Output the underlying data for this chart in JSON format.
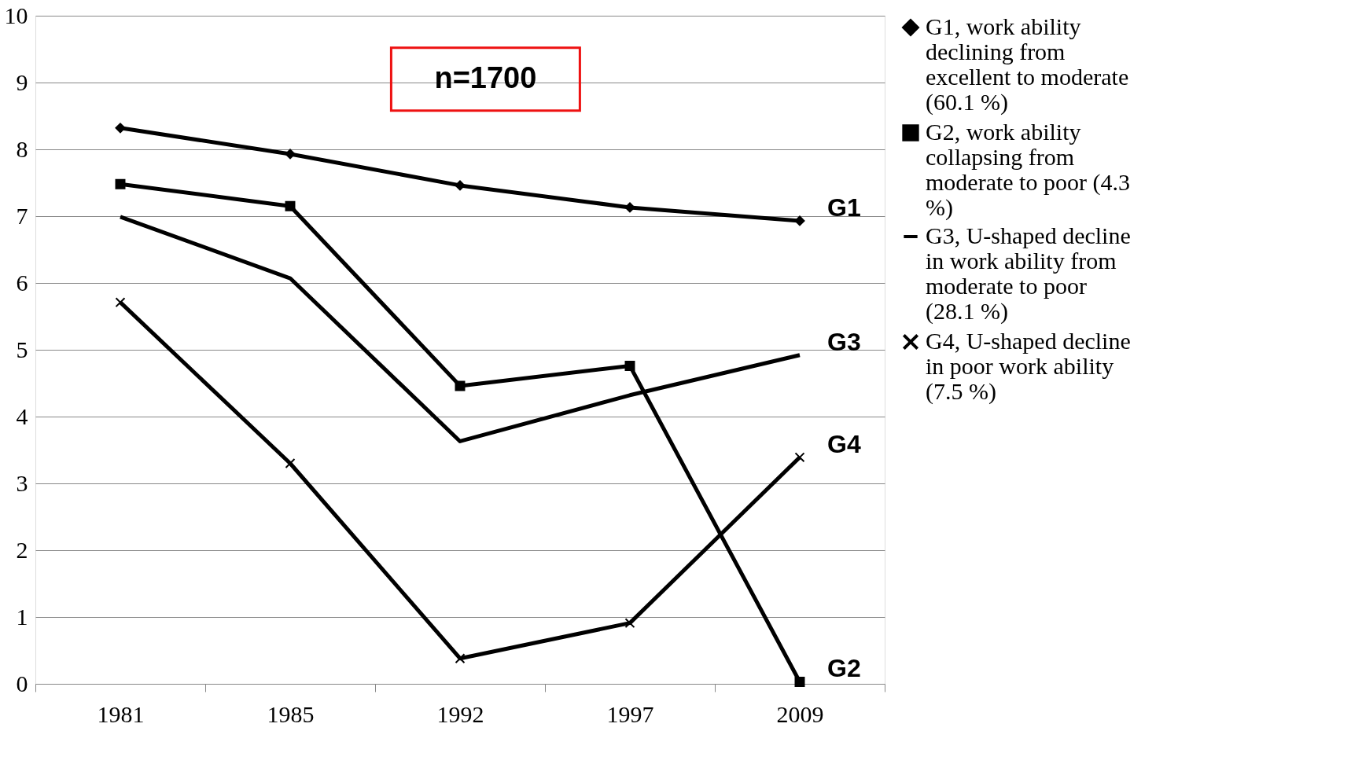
{
  "chart_data": {
    "type": "line",
    "categories": [
      "1981",
      "1985",
      "1992",
      "1997",
      "2009"
    ],
    "series": [
      {
        "name": "G1, work ability declining from excellent to moderate (60.1 %)",
        "color": "#000000",
        "marker": "diamond",
        "values": [
          8.32,
          7.93,
          7.46,
          7.13,
          6.93
        ]
      },
      {
        "name": "G2, work ability collapsing from moderate to poor (4.3 %)",
        "color": "#000000",
        "marker": "square",
        "values": [
          7.48,
          7.15,
          4.46,
          4.76,
          0.03
        ]
      },
      {
        "name": "G3, U-shaped decline in work ability from moderate to poor (28.1 %)",
        "color": "#000000",
        "marker": "none",
        "values": [
          6.99,
          6.07,
          3.63,
          4.32,
          4.92
        ]
      },
      {
        "name": "G4, U-shaped decline in poor work ability (7.5 %)",
        "color": "#000000",
        "marker": "cross",
        "values": [
          5.71,
          3.3,
          0.38,
          0.91,
          3.39
        ]
      }
    ],
    "ylim": [
      0,
      10
    ],
    "yticks": [
      0,
      1,
      2,
      3,
      4,
      5,
      6,
      7,
      8,
      9,
      10
    ],
    "grid": "y",
    "legend": "right",
    "line_style": "solid",
    "annotations": [
      "n=1700",
      {
        "text": "G1",
        "x": "2009",
        "y": 6.93
      },
      {
        "text": "G3",
        "x": "2009",
        "y": 4.92
      },
      {
        "text": "G4",
        "x": "2009",
        "y": 3.39
      },
      {
        "text": "G2",
        "x": "2009",
        "y": 0.03
      }
    ]
  }
}
